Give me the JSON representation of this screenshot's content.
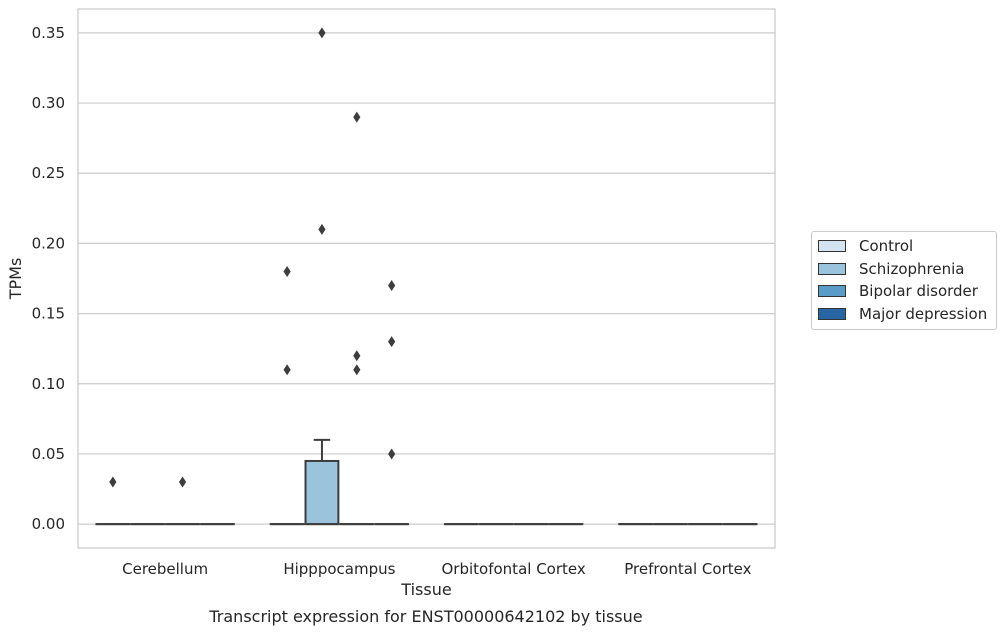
{
  "chart_data": {
    "type": "box",
    "title": "",
    "caption": "Transcript expression for ENST00000642102 by tissue",
    "xlabel": "Tissue",
    "ylabel": "TPMs",
    "ylim": [
      -0.017,
      0.367
    ],
    "yticks": [
      0.0,
      0.05,
      0.1,
      0.15,
      0.2,
      0.25,
      0.3,
      0.35
    ],
    "ytick_labels": [
      "0.00",
      "0.05",
      "0.10",
      "0.15",
      "0.20",
      "0.25",
      "0.30",
      "0.35"
    ],
    "grid": "horizontal",
    "legend_position": "right",
    "categories": [
      "Cerebellum",
      "Hipppocampus",
      "Orbitofontal Cortex",
      "Prefrontal Cortex"
    ],
    "series": [
      {
        "name": "Control",
        "color": "#d3e3f0",
        "boxes": [
          {
            "q1": 0,
            "median": 0,
            "q3": 0,
            "whisker_low": 0,
            "whisker_high": 0,
            "outliers": [
              0.03
            ]
          },
          {
            "q1": 0,
            "median": 0,
            "q3": 0,
            "whisker_low": 0,
            "whisker_high": 0,
            "outliers": [
              0.11,
              0.18
            ]
          },
          {
            "q1": 0,
            "median": 0,
            "q3": 0,
            "whisker_low": 0,
            "whisker_high": 0,
            "outliers": []
          },
          {
            "q1": 0,
            "median": 0,
            "q3": 0,
            "whisker_low": 0,
            "whisker_high": 0,
            "outliers": []
          }
        ]
      },
      {
        "name": "Schizophrenia",
        "color": "#9cc3dc",
        "boxes": [
          {
            "q1": 0,
            "median": 0,
            "q3": 0,
            "whisker_low": 0,
            "whisker_high": 0,
            "outliers": []
          },
          {
            "q1": 0,
            "median": 0,
            "q3": 0.045,
            "whisker_low": 0,
            "whisker_high": 0.06,
            "outliers": [
              0.21,
              0.35
            ]
          },
          {
            "q1": 0,
            "median": 0,
            "q3": 0,
            "whisker_low": 0,
            "whisker_high": 0,
            "outliers": []
          },
          {
            "q1": 0,
            "median": 0,
            "q3": 0,
            "whisker_low": 0,
            "whisker_high": 0,
            "outliers": []
          }
        ]
      },
      {
        "name": "Bipolar disorder",
        "color": "#5a9cc8",
        "boxes": [
          {
            "q1": 0,
            "median": 0,
            "q3": 0,
            "whisker_low": 0,
            "whisker_high": 0,
            "outliers": [
              0.03
            ]
          },
          {
            "q1": 0,
            "median": 0,
            "q3": 0,
            "whisker_low": 0,
            "whisker_high": 0,
            "outliers": [
              0.11,
              0.12,
              0.29
            ]
          },
          {
            "q1": 0,
            "median": 0,
            "q3": 0,
            "whisker_low": 0,
            "whisker_high": 0,
            "outliers": []
          },
          {
            "q1": 0,
            "median": 0,
            "q3": 0,
            "whisker_low": 0,
            "whisker_high": 0,
            "outliers": []
          }
        ]
      },
      {
        "name": "Major depression",
        "color": "#2765a3",
        "boxes": [
          {
            "q1": 0,
            "median": 0,
            "q3": 0,
            "whisker_low": 0,
            "whisker_high": 0,
            "outliers": []
          },
          {
            "q1": 0,
            "median": 0,
            "q3": 0,
            "whisker_low": 0,
            "whisker_high": 0,
            "outliers": [
              0.05,
              0.13,
              0.17
            ]
          },
          {
            "q1": 0,
            "median": 0,
            "q3": 0,
            "whisker_low": 0,
            "whisker_high": 0,
            "outliers": []
          },
          {
            "q1": 0,
            "median": 0,
            "q3": 0,
            "whisker_low": 0,
            "whisker_high": 0,
            "outliers": []
          }
        ]
      }
    ]
  }
}
